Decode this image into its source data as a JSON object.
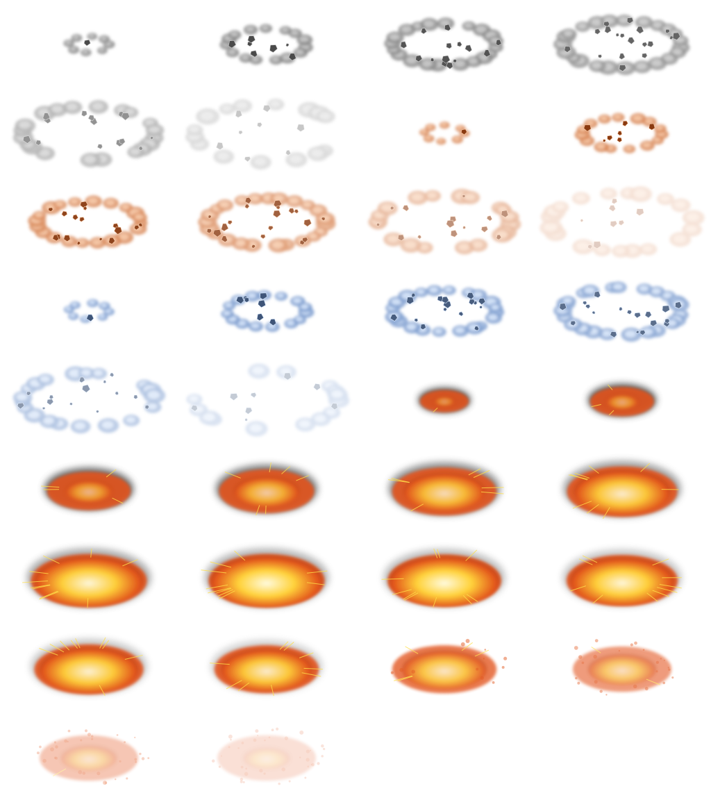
{
  "sprite_sheet": {
    "columns": 4,
    "rows": 8,
    "sequences": [
      {
        "name": "gray-rock-ring-burst",
        "palette": {
          "ring": "#8a8a8a",
          "ring_light": "#c9c9c9",
          "rock": "#4a4a4a"
        },
        "frames": [
          {
            "kind": "ring",
            "scale": 0.28,
            "opacity": 1.0,
            "rocks": 1
          },
          {
            "kind": "ring",
            "scale": 0.55,
            "opacity": 1.0,
            "rocks": 7
          },
          {
            "kind": "ring",
            "scale": 0.72,
            "opacity": 0.95,
            "rocks": 14
          },
          {
            "kind": "ring",
            "scale": 0.82,
            "opacity": 0.85,
            "rocks": 18
          },
          {
            "kind": "ring",
            "scale": 0.92,
            "opacity": 0.6,
            "rocks": 14
          },
          {
            "kind": "ring",
            "scale": 1.0,
            "opacity": 0.3,
            "rocks": 8
          }
        ]
      },
      {
        "name": "copper-rock-ring-burst",
        "palette": {
          "ring": "#d9895a",
          "ring_light": "#f7c9a6",
          "rock": "#8a3a10"
        },
        "frames": [
          {
            "kind": "ring",
            "scale": 0.28,
            "opacity": 1.0,
            "rocks": 1
          },
          {
            "kind": "ring",
            "scale": 0.55,
            "opacity": 1.0,
            "rocks": 7
          },
          {
            "kind": "ring",
            "scale": 0.72,
            "opacity": 0.95,
            "rocks": 16
          },
          {
            "kind": "ring",
            "scale": 0.82,
            "opacity": 0.8,
            "rocks": 20
          },
          {
            "kind": "ring",
            "scale": 0.92,
            "opacity": 0.55,
            "rocks": 14
          },
          {
            "kind": "ring",
            "scale": 1.0,
            "opacity": 0.25,
            "rocks": 8
          }
        ]
      },
      {
        "name": "ice-rock-ring-burst",
        "palette": {
          "ring": "#7f9fd0",
          "ring_light": "#d6e6fb",
          "rock": "#3f5578"
        },
        "frames": [
          {
            "kind": "ring",
            "scale": 0.28,
            "opacity": 1.0,
            "rocks": 1
          },
          {
            "kind": "ring",
            "scale": 0.55,
            "opacity": 1.0,
            "rocks": 7
          },
          {
            "kind": "ring",
            "scale": 0.72,
            "opacity": 0.95,
            "rocks": 16
          },
          {
            "kind": "ring",
            "scale": 0.82,
            "opacity": 0.85,
            "rocks": 18
          },
          {
            "kind": "ring",
            "scale": 0.92,
            "opacity": 0.6,
            "rocks": 14
          },
          {
            "kind": "ring",
            "scale": 1.0,
            "opacity": 0.3,
            "rocks": 8
          }
        ]
      },
      {
        "name": "fire-explosion",
        "palette": {
          "core": "#fffbe0",
          "mid": "#ffd23a",
          "outer": "#e2531a",
          "smoke": "#4a4a4a"
        },
        "frames": [
          {
            "kind": "fire",
            "scale": 0.42,
            "heat": 0.1,
            "smoke": 0.95,
            "opacity": 1.0
          },
          {
            "kind": "fire",
            "scale": 0.55,
            "heat": 0.25,
            "smoke": 0.9,
            "opacity": 1.0
          },
          {
            "kind": "fire",
            "scale": 0.72,
            "heat": 0.35,
            "smoke": 0.8,
            "opacity": 1.0
          },
          {
            "kind": "fire",
            "scale": 0.82,
            "heat": 0.55,
            "smoke": 0.7,
            "opacity": 1.0
          },
          {
            "kind": "fire",
            "scale": 0.9,
            "heat": 0.7,
            "smoke": 0.6,
            "opacity": 1.0
          },
          {
            "kind": "fire",
            "scale": 0.95,
            "heat": 0.85,
            "smoke": 0.5,
            "opacity": 1.0
          },
          {
            "kind": "fire",
            "scale": 1.0,
            "heat": 0.95,
            "smoke": 0.45,
            "opacity": 1.0
          },
          {
            "kind": "fire",
            "scale": 1.0,
            "heat": 1.0,
            "smoke": 0.4,
            "opacity": 1.0
          },
          {
            "kind": "fire",
            "scale": 0.98,
            "heat": 1.0,
            "smoke": 0.35,
            "opacity": 1.0
          },
          {
            "kind": "fire",
            "scale": 0.96,
            "heat": 0.95,
            "smoke": 0.3,
            "opacity": 1.0
          },
          {
            "kind": "fire",
            "scale": 0.94,
            "heat": 0.9,
            "smoke": 0.3,
            "opacity": 1.0
          },
          {
            "kind": "fire",
            "scale": 0.9,
            "heat": 0.85,
            "smoke": 0.25,
            "opacity": 1.0
          },
          {
            "kind": "fire",
            "scale": 0.9,
            "heat": 0.75,
            "smoke": 0.0,
            "opacity": 0.95,
            "diffuse": 0.3
          },
          {
            "kind": "fire",
            "scale": 0.85,
            "heat": 0.55,
            "smoke": 0.0,
            "opacity": 0.8,
            "diffuse": 0.6
          },
          {
            "kind": "fire",
            "scale": 0.85,
            "heat": 0.35,
            "smoke": 0.0,
            "opacity": 0.5,
            "diffuse": 0.8
          },
          {
            "kind": "fire",
            "scale": 0.85,
            "heat": 0.2,
            "smoke": 0.0,
            "opacity": 0.3,
            "diffuse": 1.0
          }
        ]
      }
    ]
  }
}
